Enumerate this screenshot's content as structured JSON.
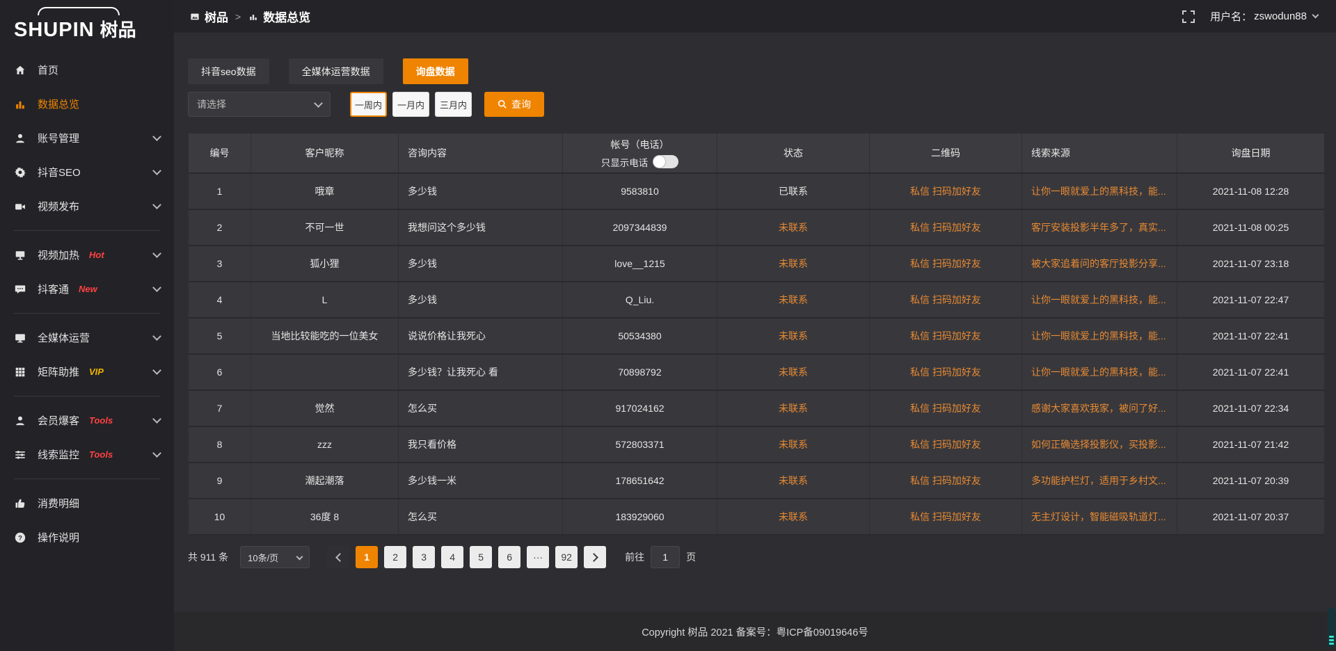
{
  "colors": {
    "accent": "#ef8400",
    "orange_text": "#e98a33",
    "badge_red": "#ff4141",
    "badge_yellow": "#f0b400",
    "teal": "#35e0c8"
  },
  "sidebar": {
    "logo_en": "SHUPIN",
    "logo_cn": "树品",
    "items": [
      {
        "label": "首页",
        "icon": "home-icon",
        "active": false,
        "chevron": false
      },
      {
        "label": "数据总览",
        "icon": "chart-icon",
        "active": true,
        "chevron": false
      },
      {
        "label": "账号管理",
        "icon": "user-icon",
        "chevron": true
      },
      {
        "label": "抖音SEO",
        "icon": "gear-icon",
        "chevron": true
      },
      {
        "label": "视频发布",
        "icon": "video-publish-icon",
        "chevron": true,
        "divider_after": true
      },
      {
        "label": "视频加热",
        "icon": "video-heat-icon",
        "badge": "Hot",
        "badge_color": "red",
        "chevron": true
      },
      {
        "label": "抖客通",
        "icon": "chat-icon",
        "badge": "New",
        "badge_color": "red",
        "chevron": true,
        "divider_after": true
      },
      {
        "label": "全媒体运营",
        "icon": "monitor-icon",
        "chevron": true
      },
      {
        "label": "矩阵助推",
        "icon": "grid-icon",
        "badge": "VIP",
        "badge_color": "yellow",
        "chevron": true,
        "divider_after": true
      },
      {
        "label": "会员爆客",
        "icon": "member-icon",
        "badge": "Tools",
        "badge_color": "red",
        "chevron": true
      },
      {
        "label": "线索监控",
        "icon": "sliders-icon",
        "badge": "Tools",
        "badge_color": "red",
        "chevron": true,
        "divider_after": true
      },
      {
        "label": "消费明细",
        "icon": "expense-icon",
        "chevron": false
      },
      {
        "label": "操作说明",
        "icon": "help-icon",
        "chevron": false
      }
    ]
  },
  "header": {
    "breadcrumb_home": "树品",
    "breadcrumb_home_icon": "site-icon",
    "breadcrumb_sep": ">",
    "breadcrumb_current": "数据总览",
    "breadcrumb_current_icon": "chart-icon",
    "fullscreen_icon": "fullscreen-icon",
    "username_label": "用户名：",
    "username": "zswodun88"
  },
  "tabs": [
    {
      "label": "抖音seo数据",
      "active": false
    },
    {
      "label": "全媒体运营数据",
      "active": false
    },
    {
      "label": "询盘数据",
      "active": true
    }
  ],
  "filters": {
    "select_placeholder": "请选择",
    "range_buttons": [
      {
        "label": "一周内",
        "active": true
      },
      {
        "label": "一月内",
        "active": false
      },
      {
        "label": "三月内",
        "active": false
      }
    ],
    "query_label": "查询",
    "query_icon": "search-icon"
  },
  "table": {
    "headers": {
      "id": "编号",
      "nickname": "客户昵称",
      "content": "咨询内容",
      "account": "帐号（电话）",
      "phone_toggle_label": "只显示电话",
      "status": "状态",
      "qr": "二维码",
      "source": "线索来源",
      "date": "询盘日期"
    },
    "rows": [
      {
        "id": "1",
        "nickname": "哦章",
        "content": "多少钱",
        "account": "9583810",
        "status": "已联系",
        "contacted": true,
        "qr": "私信 扫码加好友",
        "source": "让你一眼就爱上的黑科技，能...",
        "date": "2021-11-08 12:28"
      },
      {
        "id": "2",
        "nickname": "不可一世",
        "content": "我想问这个多少钱",
        "account": "2097344839",
        "status": "未联系",
        "contacted": false,
        "qr": "私信 扫码加好友",
        "source": "客厅安装投影半年多了，真实...",
        "date": "2021-11-08 00:25"
      },
      {
        "id": "3",
        "nickname": "狐小狸",
        "content": "多少钱",
        "account": "love__1215",
        "status": "未联系",
        "contacted": false,
        "qr": "私信 扫码加好友",
        "source": "被大家追着问的客厅投影分享...",
        "date": "2021-11-07 23:18"
      },
      {
        "id": "4",
        "nickname": "L",
        "content": "多少钱",
        "account": "Q_Liu.",
        "status": "未联系",
        "contacted": false,
        "qr": "私信 扫码加好友",
        "source": "让你一眼就爱上的黑科技，能...",
        "date": "2021-11-07 22:47"
      },
      {
        "id": "5",
        "nickname": "当地比较能吃的一位美女",
        "content": "说说价格让我死心",
        "account": "50534380",
        "status": "未联系",
        "contacted": false,
        "qr": "私信 扫码加好友",
        "source": "让你一眼就爱上的黑科技，能...",
        "date": "2021-11-07 22:41"
      },
      {
        "id": "6",
        "nickname": "",
        "content": "多少钱？让我死心 看",
        "account": "70898792",
        "status": "未联系",
        "contacted": false,
        "qr": "私信 扫码加好友",
        "source": "让你一眼就爱上的黑科技，能...",
        "date": "2021-11-07 22:41"
      },
      {
        "id": "7",
        "nickname": "觉然",
        "content": "怎么买",
        "account": "917024162",
        "status": "未联系",
        "contacted": false,
        "qr": "私信 扫码加好友",
        "source": "感谢大家喜欢我家，被问了好...",
        "date": "2021-11-07 22:34"
      },
      {
        "id": "8",
        "nickname": "zzz",
        "content": "我只看价格",
        "account": "572803371",
        "status": "未联系",
        "contacted": false,
        "qr": "私信 扫码加好友",
        "source": "如何正确选择投影仪，买投影...",
        "date": "2021-11-07 21:42"
      },
      {
        "id": "9",
        "nickname": "潮起潮落",
        "content": "多少钱一米",
        "account": "178651642",
        "status": "未联系",
        "contacted": false,
        "qr": "私信 扫码加好友",
        "source": "多功能护栏灯，适用于乡村文...",
        "date": "2021-11-07 20:39"
      },
      {
        "id": "10",
        "nickname": "36度 8",
        "content": "怎么买",
        "account": "183929060",
        "status": "未联系",
        "contacted": false,
        "qr": "私信 扫码加好友",
        "source": "无主灯设计，智能磁吸轨道灯...",
        "date": "2021-11-07 20:37"
      }
    ]
  },
  "pagination": {
    "total": "共 911 条",
    "page_size": "10条/页",
    "pages": [
      "1",
      "2",
      "3",
      "4",
      "5",
      "6",
      "···",
      "92"
    ],
    "active_page": "1",
    "prev_icon": "chevron-left-icon",
    "next_icon": "chevron-right-icon",
    "goto_label": "前往",
    "goto_value": "1",
    "goto_suffix": "页"
  },
  "footer": {
    "copyright": "Copyright 树品 2021 备案号：粤ICP备09019646号"
  }
}
